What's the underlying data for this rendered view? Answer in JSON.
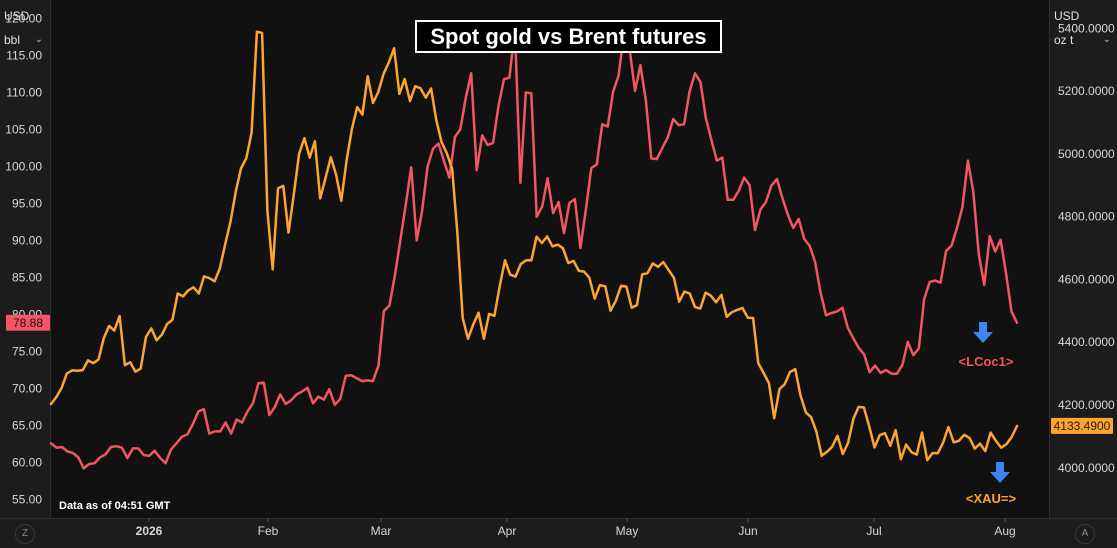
{
  "left_axis": {
    "unit_top": "USD",
    "unit_bottom": "bbl"
  },
  "right_axis": {
    "unit_top": "USD",
    "unit_bottom": "oz t"
  },
  "corner_buttons": {
    "left": "Z",
    "right": "A"
  },
  "note": "Data as of 04:51 GMT",
  "chart_data": {
    "type": "line",
    "title": "Spot gold vs Brent futures",
    "x_tick_labels": [
      "2026",
      "Feb",
      "Mar",
      "Apr",
      "May",
      "Jun",
      "Jul",
      "Aug"
    ],
    "left_axis": {
      "unit": "USD/bbl",
      "range": [
        52.5,
        122.5
      ],
      "ticks": [
        "120.00",
        "115.00",
        "110.00",
        "105.00",
        "100.00",
        "95.00",
        "90.00",
        "85.00",
        "80.00",
        "75.00",
        "70.00",
        "65.00",
        "60.00",
        "55.00"
      ],
      "last_value_label": "78.88",
      "last_value": 78.88
    },
    "right_axis": {
      "unit": "USD/oz t",
      "range": [
        3840,
        5490
      ],
      "ticks": [
        "5400.0000",
        "5200.0000",
        "5000.0000",
        "4800.0000",
        "4600.0000",
        "4400.0000",
        "4200.0000",
        "4000.0000"
      ],
      "last_value_label": "4133.4900",
      "last_value": 4133.49
    },
    "series": [
      {
        "name": "<LCoc1>",
        "axis": "left",
        "color": "#f25564",
        "values": [
          62.6,
          62.0,
          62.1,
          61.5,
          61.3,
          60.7,
          59.2,
          59.8,
          59.9,
          60.7,
          61.1,
          62.1,
          62.2,
          62.0,
          60.6,
          61.9,
          61.9,
          61.0,
          60.9,
          61.6,
          60.6,
          59.9,
          61.8,
          62.6,
          63.5,
          63.8,
          65.2,
          66.9,
          67.2,
          63.9,
          64.2,
          64.2,
          65.4,
          63.9,
          65.8,
          65.4,
          66.9,
          68.0,
          70.7,
          70.8,
          66.4,
          67.5,
          69.2,
          67.9,
          68.4,
          69.2,
          69.6,
          70.1,
          68.0,
          68.9,
          68.5,
          69.9,
          67.8,
          68.6,
          71.7,
          71.8,
          71.4,
          71.0,
          71.1,
          71.0,
          73.1,
          80.5,
          81.2,
          85.2,
          90.0,
          94.8,
          99.9,
          90.0,
          94.0,
          100.0,
          102.4,
          103.1,
          100.8,
          98.5,
          104.0,
          105.0,
          109.3,
          112.6,
          99.5,
          104.2,
          102.9,
          103.2,
          108.2,
          111.8,
          112.0,
          118.5,
          97.8,
          110.0,
          109.9,
          93.2,
          94.6,
          98.4,
          93.7,
          95.2,
          91.0,
          95.1,
          95.6,
          89.0,
          94.1,
          99.8,
          100.3,
          105.7,
          105.4,
          110.1,
          112.3,
          118.1,
          116.0,
          110.2,
          113.7,
          108.9,
          101.1,
          101.0,
          102.5,
          103.9,
          106.4,
          105.6,
          105.7,
          110.1,
          112.6,
          111.4,
          106.5,
          103.6,
          100.8,
          101.2,
          95.5,
          95.5,
          96.7,
          98.5,
          97.5,
          91.4,
          94.2,
          95.2,
          97.4,
          98.3,
          95.8,
          93.5,
          91.7,
          92.9,
          90.2,
          89.3,
          87.1,
          83.0,
          79.9,
          80.2,
          80.4,
          80.9,
          78.2,
          76.8,
          75.5,
          74.6,
          72.2,
          73.1,
          72.1,
          72.5,
          72.0,
          72.0,
          73.2,
          76.3,
          74.5,
          75.4,
          82.1,
          84.4,
          84.6,
          84.3,
          88.6,
          89.3,
          91.7,
          94.5,
          100.8,
          96.6,
          88.1,
          84.0,
          90.6,
          88.5,
          90.1,
          85.5,
          80.4,
          78.88
        ]
      },
      {
        "name": "<XAU=>",
        "axis": "right",
        "color": "#fca533",
        "values": [
          4203,
          4225,
          4254,
          4300,
          4310,
          4309,
          4311,
          4342,
          4333,
          4345,
          4413,
          4452,
          4437,
          4483,
          4327,
          4336,
          4306,
          4316,
          4417,
          4444,
          4406,
          4424,
          4458,
          4471,
          4555,
          4546,
          4565,
          4575,
          4555,
          4610,
          4604,
          4594,
          4636,
          4712,
          4784,
          4880,
          4954,
          4986,
          5068,
          5389,
          5385,
          4818,
          4632,
          4890,
          4898,
          4749,
          4870,
          5000,
          5050,
          4988,
          5040,
          4858,
          4923,
          4989,
          4935,
          4850,
          4979,
          5079,
          5149,
          5125,
          5247,
          5162,
          5197,
          5255,
          5291,
          5336,
          5191,
          5238,
          5168,
          5215,
          5209,
          5179,
          5208,
          5107,
          5037,
          5001,
          4951,
          4742,
          4477,
          4411,
          4457,
          4494,
          4411,
          4490,
          4484,
          4578,
          4661,
          4615,
          4609,
          4649,
          4661,
          4661,
          4736,
          4716,
          4737,
          4705,
          4711,
          4699,
          4652,
          4659,
          4627,
          4625,
          4605,
          4539,
          4582,
          4578,
          4500,
          4532,
          4580,
          4577,
          4510,
          4518,
          4616,
          4620,
          4651,
          4640,
          4655,
          4630,
          4605,
          4529,
          4561,
          4555,
          4512,
          4507,
          4558,
          4548,
          4527,
          4551,
          4481,
          4496,
          4503,
          4509,
          4478,
          4477,
          4333,
          4302,
          4270,
          4158,
          4251,
          4266,
          4305,
          4314,
          4229,
          4176,
          4161,
          4115,
          4038,
          4051,
          4067,
          4102,
          4044,
          4080,
          4156,
          4194,
          4192,
          4132,
          4065,
          4104,
          4110,
          4070,
          4120,
          4027,
          4074,
          4050,
          4042,
          4112,
          4024,
          4047,
          4046,
          4080,
          4130,
          4081,
          4086,
          4105,
          4095,
          4061,
          4077,
          4053,
          4112,
          4086,
          4064,
          4075,
          4098,
          4133.49
        ]
      }
    ],
    "annotations": [
      {
        "text": "<LCoc1>",
        "color": "#f25564"
      },
      {
        "text": "<XAU=>",
        "color": "#fca533"
      }
    ],
    "grid": false,
    "legend": "none"
  }
}
